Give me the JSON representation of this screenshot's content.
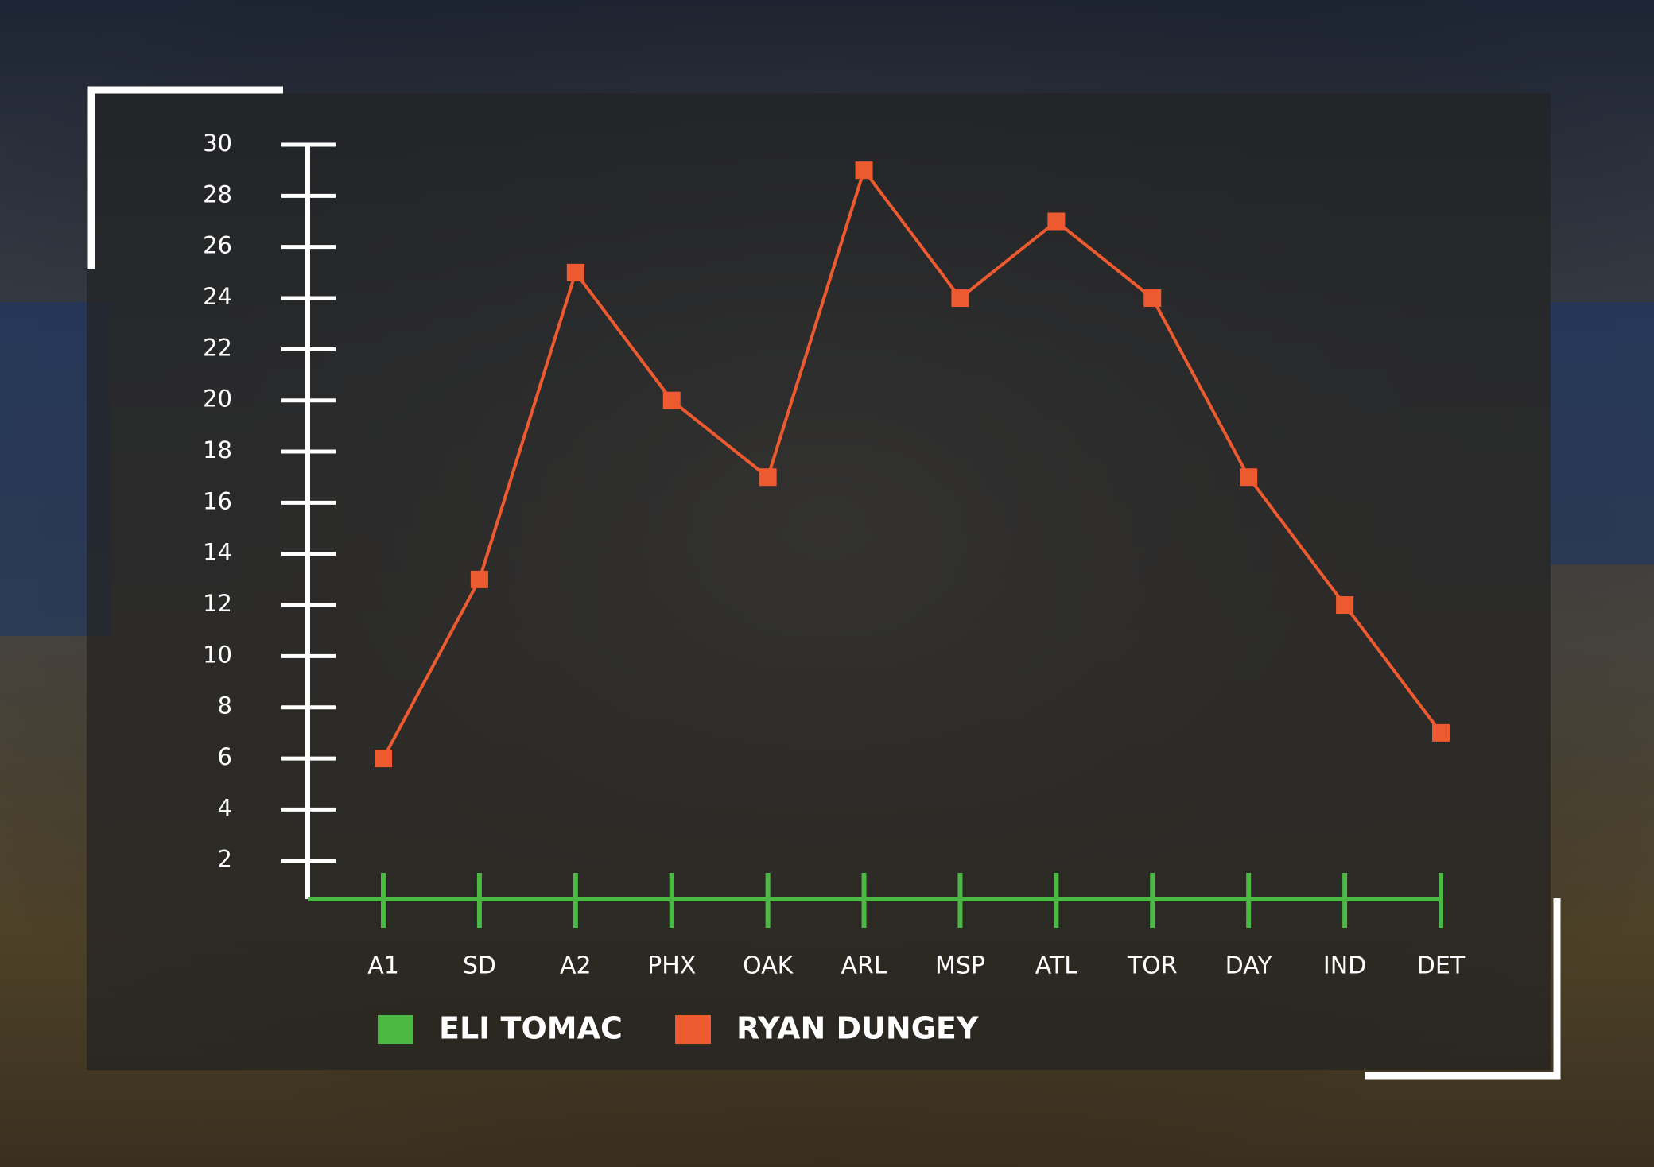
{
  "chart_data": {
    "type": "line",
    "categories": [
      "A1",
      "SD",
      "A2",
      "PHX",
      "OAK",
      "ARL",
      "MSP",
      "ATL",
      "TOR",
      "DAY",
      "IND",
      "DET"
    ],
    "series": [
      {
        "name": "ELI TOMAC",
        "color": "#4cb944",
        "values": [
          null,
          null,
          null,
          null,
          null,
          null,
          null,
          null,
          null,
          null,
          null,
          null
        ]
      },
      {
        "name": "RYAN DUNGEY",
        "color": "#ee5a2f",
        "values": [
          6,
          13,
          25,
          20,
          17,
          29,
          24,
          27,
          24,
          17,
          12,
          7
        ]
      }
    ],
    "ylim": [
      0.5,
      30
    ],
    "yticks": [
      2,
      4,
      6,
      8,
      10,
      12,
      14,
      16,
      18,
      20,
      22,
      24,
      26,
      28,
      30
    ],
    "grid": false
  }
}
